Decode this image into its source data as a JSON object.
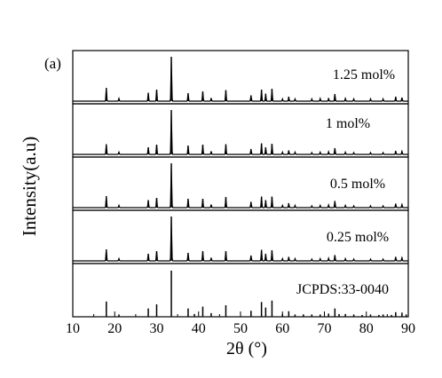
{
  "chart_data": {
    "type": "line",
    "panel_label": "(a)",
    "xlabel": "2θ (°)",
    "ylabel": "Intensity(a.u)",
    "xlim": [
      10,
      90
    ],
    "x_ticks": [
      "10",
      "20",
      "30",
      "40",
      "50",
      "60",
      "70",
      "80",
      "90"
    ],
    "grid": false,
    "series": [
      {
        "name": "1.25 mol%",
        "peaks": [
          [
            18,
            0.3
          ],
          [
            21,
            0.06
          ],
          [
            28,
            0.19
          ],
          [
            30,
            0.26
          ],
          [
            33.5,
            1.0
          ],
          [
            37.5,
            0.18
          ],
          [
            41,
            0.22
          ],
          [
            43,
            0.07
          ],
          [
            46.5,
            0.25
          ],
          [
            52.5,
            0.13
          ],
          [
            55,
            0.26
          ],
          [
            56,
            0.17
          ],
          [
            57.5,
            0.28
          ],
          [
            60,
            0.05
          ],
          [
            61.5,
            0.1
          ],
          [
            63,
            0.05
          ],
          [
            67,
            0.05
          ],
          [
            69,
            0.06
          ],
          [
            71,
            0.07
          ],
          [
            72.5,
            0.16
          ],
          [
            75,
            0.06
          ],
          [
            77,
            0.05
          ],
          [
            81,
            0.05
          ],
          [
            84,
            0.05
          ],
          [
            87,
            0.1
          ],
          [
            88.5,
            0.08
          ]
        ]
      },
      {
        "name": "1 mol%",
        "peaks": [
          [
            18,
            0.23
          ],
          [
            21,
            0.05
          ],
          [
            28,
            0.16
          ],
          [
            30,
            0.22
          ],
          [
            33.5,
            1.0
          ],
          [
            37.5,
            0.2
          ],
          [
            41,
            0.22
          ],
          [
            43,
            0.07
          ],
          [
            46.5,
            0.23
          ],
          [
            52.5,
            0.12
          ],
          [
            55,
            0.25
          ],
          [
            56,
            0.16
          ],
          [
            57.5,
            0.24
          ],
          [
            60,
            0.05
          ],
          [
            61.5,
            0.09
          ],
          [
            63,
            0.05
          ],
          [
            67,
            0.04
          ],
          [
            69,
            0.05
          ],
          [
            71,
            0.06
          ],
          [
            72.5,
            0.14
          ],
          [
            75,
            0.05
          ],
          [
            77,
            0.04
          ],
          [
            81,
            0.04
          ],
          [
            84,
            0.04
          ],
          [
            87,
            0.08
          ],
          [
            88.5,
            0.07
          ]
        ]
      },
      {
        "name": "0.5 mol%",
        "peaks": [
          [
            18,
            0.26
          ],
          [
            21,
            0.05
          ],
          [
            28,
            0.17
          ],
          [
            30,
            0.22
          ],
          [
            33.5,
            1.0
          ],
          [
            37.5,
            0.2
          ],
          [
            41,
            0.2
          ],
          [
            43,
            0.07
          ],
          [
            46.5,
            0.24
          ],
          [
            52.5,
            0.13
          ],
          [
            55,
            0.25
          ],
          [
            56,
            0.17
          ],
          [
            57.5,
            0.25
          ],
          [
            60,
            0.05
          ],
          [
            61.5,
            0.1
          ],
          [
            63,
            0.05
          ],
          [
            67,
            0.04
          ],
          [
            69,
            0.05
          ],
          [
            71,
            0.06
          ],
          [
            72.5,
            0.15
          ],
          [
            75,
            0.05
          ],
          [
            77,
            0.04
          ],
          [
            81,
            0.04
          ],
          [
            84,
            0.04
          ],
          [
            87,
            0.09
          ],
          [
            88.5,
            0.07
          ]
        ]
      },
      {
        "name": "0.25 mol%",
        "peaks": [
          [
            18,
            0.26
          ],
          [
            21,
            0.05
          ],
          [
            28,
            0.16
          ],
          [
            30,
            0.22
          ],
          [
            33.5,
            1.0
          ],
          [
            37.5,
            0.18
          ],
          [
            41,
            0.22
          ],
          [
            43,
            0.07
          ],
          [
            46.5,
            0.22
          ],
          [
            52.5,
            0.12
          ],
          [
            55,
            0.25
          ],
          [
            56,
            0.16
          ],
          [
            57.5,
            0.24
          ],
          [
            60,
            0.05
          ],
          [
            61.5,
            0.09
          ],
          [
            63,
            0.05
          ],
          [
            67,
            0.04
          ],
          [
            69,
            0.05
          ],
          [
            71,
            0.06
          ],
          [
            72.5,
            0.13
          ],
          [
            75,
            0.05
          ],
          [
            77,
            0.04
          ],
          [
            81,
            0.04
          ],
          [
            84,
            0.04
          ],
          [
            87,
            0.09
          ],
          [
            88.5,
            0.07
          ]
        ]
      },
      {
        "name": "JCPDS:33-0040",
        "peaks": [
          [
            18,
            0.33
          ],
          [
            21,
            0.05
          ],
          [
            28,
            0.18
          ],
          [
            30,
            0.27
          ],
          [
            33.5,
            1.0
          ],
          [
            37.5,
            0.18
          ],
          [
            39,
            0.06
          ],
          [
            41,
            0.22
          ],
          [
            43,
            0.08
          ],
          [
            46.5,
            0.25
          ],
          [
            52.5,
            0.13
          ],
          [
            55,
            0.32
          ],
          [
            56,
            0.2
          ],
          [
            57.5,
            0.35
          ],
          [
            60,
            0.06
          ],
          [
            61.5,
            0.12
          ],
          [
            63,
            0.05
          ],
          [
            65,
            0.04
          ],
          [
            67,
            0.05
          ],
          [
            69,
            0.05
          ],
          [
            71,
            0.07
          ],
          [
            72.5,
            0.18
          ],
          [
            73.5,
            0.06
          ],
          [
            75,
            0.06
          ],
          [
            77,
            0.05
          ],
          [
            79,
            0.04
          ],
          [
            81,
            0.05
          ],
          [
            83,
            0.04
          ],
          [
            84,
            0.05
          ],
          [
            86,
            0.04
          ],
          [
            87,
            0.1
          ],
          [
            88.5,
            0.09
          ],
          [
            89.5,
            0.05
          ]
        ]
      }
    ]
  }
}
